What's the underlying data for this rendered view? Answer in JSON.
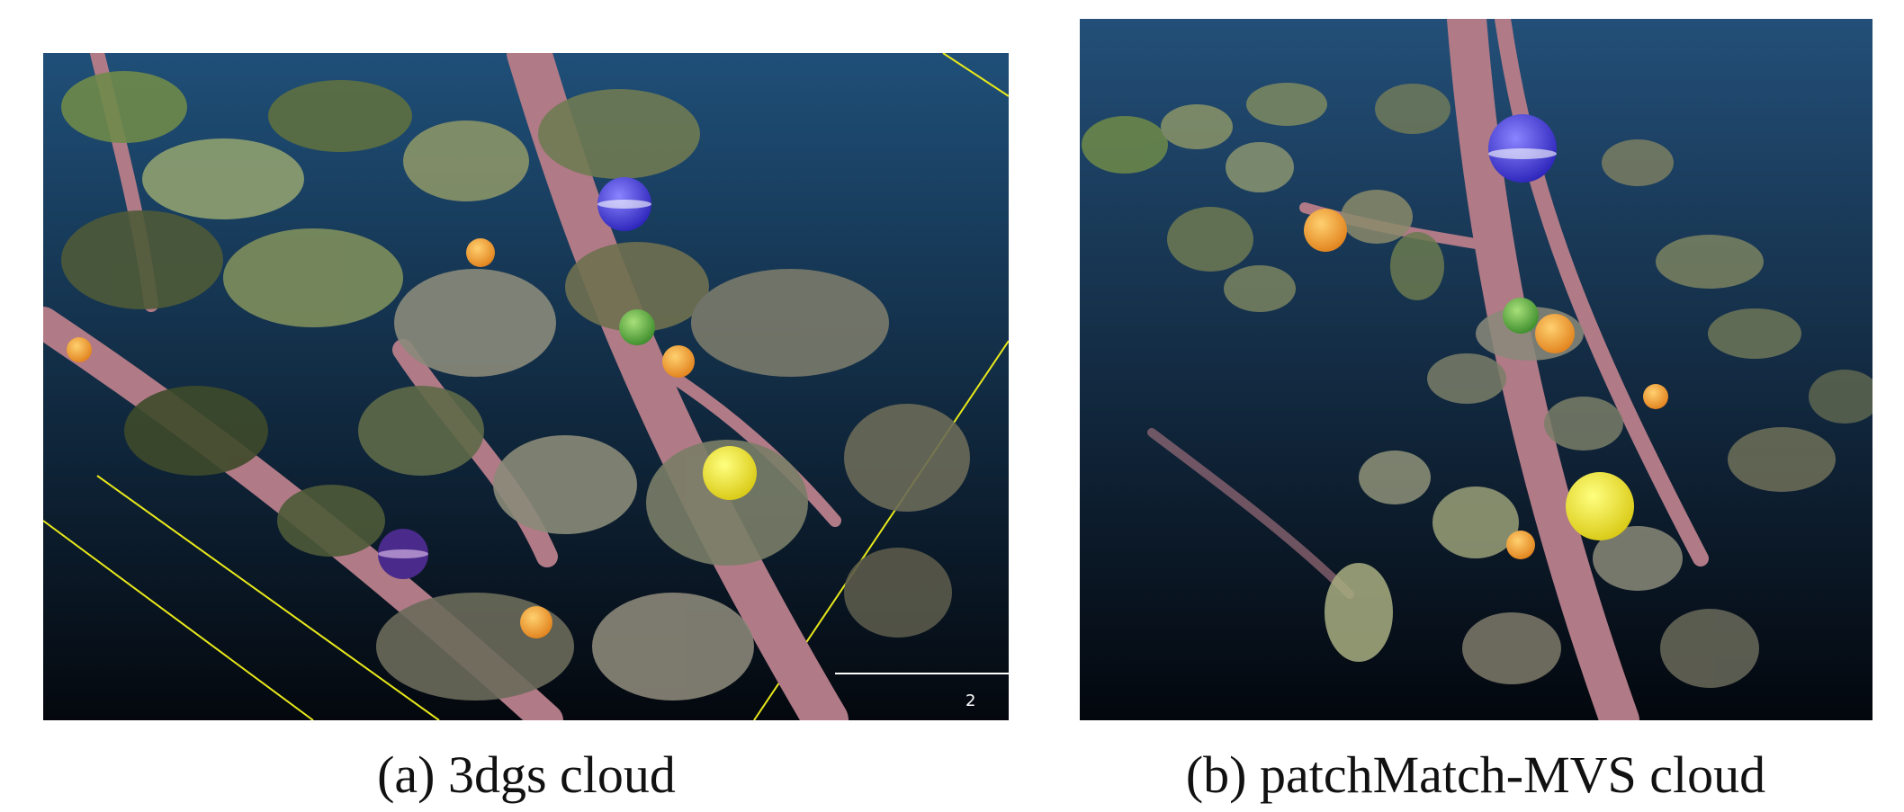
{
  "figure": {
    "panels": [
      {
        "caption": "(a) 3dgs cloud",
        "scale_bar_label": "2",
        "background_top": "#1f4f78",
        "background_bottom": "#04080e",
        "grid_line_color": "#e8e81a"
      },
      {
        "caption": "(b) patchMatch-MVS cloud",
        "background_top": "#234f78",
        "background_bottom": "#03070d"
      }
    ],
    "sphere_colors": {
      "blue": "#2a22b8",
      "yellow": "#f2e61a",
      "orange": "#f0a02a",
      "green": "#5aa83a",
      "purple": "#4a2a8a"
    },
    "foliage_colors": {
      "branch": "#b07a86",
      "leaf_light": "#8fa070",
      "leaf_dark": "#4e5a38"
    }
  }
}
